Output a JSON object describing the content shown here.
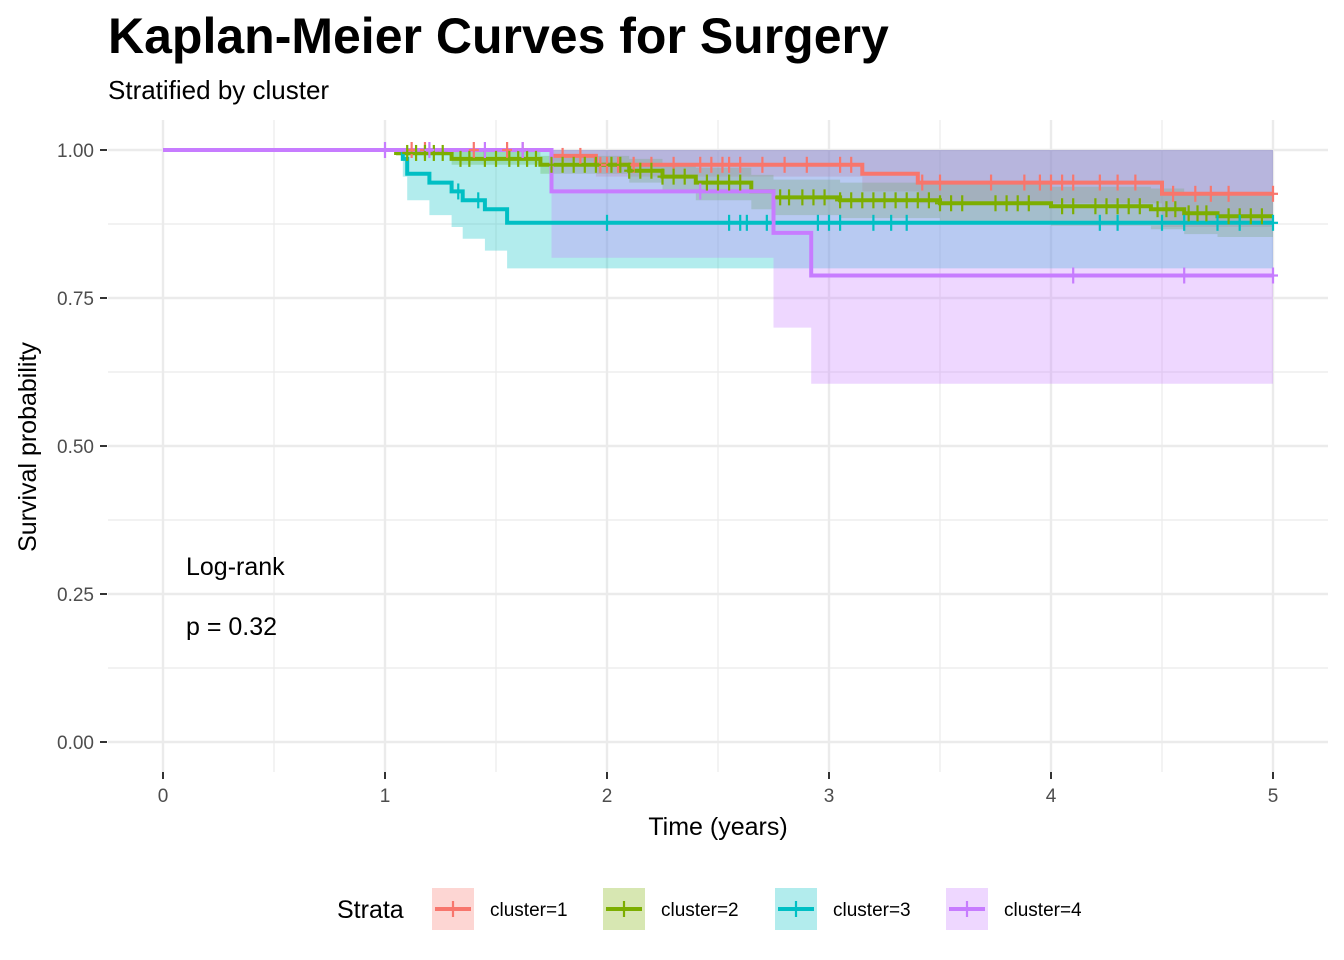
{
  "chart_data": {
    "type": "line",
    "title": "Kaplan-Meier Curves for Surgery",
    "subtitle": "Stratified by cluster",
    "xlabel": "Time (years)",
    "ylabel": "Survival probability",
    "xlim": [
      0,
      5
    ],
    "ylim": [
      0,
      1
    ],
    "xticks": [
      "0",
      "1",
      "2",
      "3",
      "4",
      "5"
    ],
    "yticks": [
      "0.00",
      "0.25",
      "0.50",
      "0.75",
      "1.00"
    ],
    "annotation": {
      "line1": "Log-rank",
      "line2": "p = 0.32"
    },
    "legend_title": "Strata",
    "legend_position": "bottom",
    "series": [
      {
        "name": "cluster=1",
        "color": "#F8766D",
        "steps": [
          [
            0,
            1
          ],
          [
            1.75,
            0.99
          ],
          [
            1.95,
            0.975
          ],
          [
            3.15,
            0.96
          ],
          [
            3.4,
            0.945
          ],
          [
            4.5,
            0.926
          ],
          [
            5.0,
            0.926
          ]
        ],
        "lower": [
          [
            0,
            1
          ],
          [
            1.75,
            0.98
          ],
          [
            1.95,
            0.955
          ],
          [
            3.15,
            0.93
          ],
          [
            3.4,
            0.91
          ],
          [
            4.5,
            0.87
          ],
          [
            5.0,
            0.87
          ]
        ],
        "upper": [
          [
            0,
            1
          ],
          [
            1.75,
            1
          ],
          [
            1.95,
            1
          ],
          [
            3.15,
            1
          ],
          [
            3.4,
            1
          ],
          [
            4.5,
            1
          ],
          [
            5.0,
            1
          ]
        ],
        "censor": [
          1.12,
          1.18,
          1.4,
          1.55,
          1.62,
          1.8,
          1.88,
          1.97,
          2.0,
          2.05,
          2.12,
          2.2,
          2.3,
          2.42,
          2.47,
          2.52,
          2.55,
          2.6,
          2.7,
          2.8,
          2.9,
          3.05,
          3.1,
          3.42,
          3.5,
          3.73,
          3.88,
          3.95,
          4.0,
          4.05,
          4.1,
          4.22,
          4.3,
          4.38,
          4.55,
          4.65,
          4.72,
          4.8,
          5.0
        ]
      },
      {
        "name": "cluster=2",
        "color": "#7CAE00",
        "steps": [
          [
            0,
            1
          ],
          [
            1.05,
            0.995
          ],
          [
            1.3,
            0.985
          ],
          [
            1.7,
            0.975
          ],
          [
            2.1,
            0.965
          ],
          [
            2.25,
            0.955
          ],
          [
            2.4,
            0.945
          ],
          [
            2.65,
            0.93
          ],
          [
            2.75,
            0.92
          ],
          [
            3.05,
            0.915
          ],
          [
            3.5,
            0.91
          ],
          [
            4.0,
            0.905
          ],
          [
            4.45,
            0.9
          ],
          [
            4.6,
            0.893
          ],
          [
            4.75,
            0.888
          ],
          [
            5.0,
            0.888
          ]
        ],
        "lower": [
          [
            0,
            1
          ],
          [
            1.05,
            0.99
          ],
          [
            1.3,
            0.975
          ],
          [
            1.7,
            0.96
          ],
          [
            2.1,
            0.945
          ],
          [
            2.25,
            0.93
          ],
          [
            2.4,
            0.915
          ],
          [
            2.65,
            0.9
          ],
          [
            2.75,
            0.89
          ],
          [
            3.05,
            0.885
          ],
          [
            3.5,
            0.878
          ],
          [
            4.0,
            0.872
          ],
          [
            4.45,
            0.866
          ],
          [
            4.6,
            0.858
          ],
          [
            4.75,
            0.853
          ],
          [
            5.0,
            0.853
          ]
        ],
        "upper": [
          [
            0,
            1
          ],
          [
            1.05,
            1
          ],
          [
            1.3,
            1
          ],
          [
            1.7,
            0.99
          ],
          [
            2.1,
            0.985
          ],
          [
            2.25,
            0.975
          ],
          [
            2.4,
            0.97
          ],
          [
            2.65,
            0.958
          ],
          [
            2.75,
            0.95
          ],
          [
            3.05,
            0.945
          ],
          [
            3.5,
            0.942
          ],
          [
            4.0,
            0.938
          ],
          [
            4.45,
            0.935
          ],
          [
            4.6,
            0.928
          ],
          [
            4.75,
            0.923
          ],
          [
            5.0,
            0.923
          ]
        ],
        "censor": [
          1.1,
          1.14,
          1.18,
          1.22,
          1.26,
          1.34,
          1.38,
          1.45,
          1.5,
          1.56,
          1.6,
          1.64,
          1.68,
          1.75,
          1.8,
          1.85,
          1.9,
          1.95,
          2.02,
          2.06,
          2.1,
          2.15,
          2.2,
          2.25,
          2.3,
          2.35,
          2.45,
          2.5,
          2.55,
          2.6,
          2.78,
          2.82,
          2.88,
          2.93,
          2.98,
          3.05,
          3.1,
          3.15,
          3.2,
          3.25,
          3.3,
          3.35,
          3.4,
          3.45,
          3.5,
          3.55,
          3.6,
          3.75,
          3.8,
          3.85,
          3.9,
          4.05,
          4.1,
          4.2,
          4.25,
          4.3,
          4.35,
          4.4,
          4.48,
          4.52,
          4.56,
          4.62,
          4.66,
          4.7,
          4.8,
          4.85,
          4.9,
          4.95
        ]
      },
      {
        "name": "cluster=3",
        "color": "#00BFC4",
        "steps": [
          [
            0,
            1
          ],
          [
            1.08,
            0.985
          ],
          [
            1.1,
            0.96
          ],
          [
            1.2,
            0.945
          ],
          [
            1.3,
            0.93
          ],
          [
            1.35,
            0.915
          ],
          [
            1.45,
            0.9
          ],
          [
            1.55,
            0.877
          ],
          [
            5.0,
            0.877
          ]
        ],
        "lower": [
          [
            0,
            1
          ],
          [
            1.08,
            0.955
          ],
          [
            1.1,
            0.915
          ],
          [
            1.2,
            0.89
          ],
          [
            1.3,
            0.87
          ],
          [
            1.35,
            0.85
          ],
          [
            1.45,
            0.83
          ],
          [
            1.55,
            0.8
          ],
          [
            2.75,
            0.8
          ],
          [
            2.75,
            0.8
          ],
          [
            5.0,
            0.8
          ]
        ],
        "upper": [
          [
            0,
            1
          ],
          [
            5.0,
            1
          ]
        ],
        "censor": [
          1.33,
          1.42,
          2.0,
          2.55,
          2.6,
          2.63,
          2.72,
          2.95,
          3.0,
          3.05,
          3.2,
          3.28,
          3.35,
          4.22,
          4.3,
          4.5,
          4.6,
          4.75,
          4.85,
          5.0
        ]
      },
      {
        "name": "cluster=4",
        "color": "#C77CFF",
        "steps": [
          [
            0,
            1
          ],
          [
            1.75,
            0.93
          ],
          [
            2.75,
            0.86
          ],
          [
            2.92,
            0.788
          ],
          [
            5.0,
            0.788
          ]
        ],
        "lower": [
          [
            0,
            1
          ],
          [
            1.75,
            0.818
          ],
          [
            2.75,
            0.7
          ],
          [
            2.92,
            0.605
          ],
          [
            5.0,
            0.605
          ]
        ],
        "upper": [
          [
            0,
            1
          ],
          [
            5.0,
            1
          ]
        ],
        "censor": [
          1.0,
          1.2,
          1.45,
          1.62,
          2.42,
          4.1,
          4.6,
          5.0
        ]
      }
    ]
  }
}
